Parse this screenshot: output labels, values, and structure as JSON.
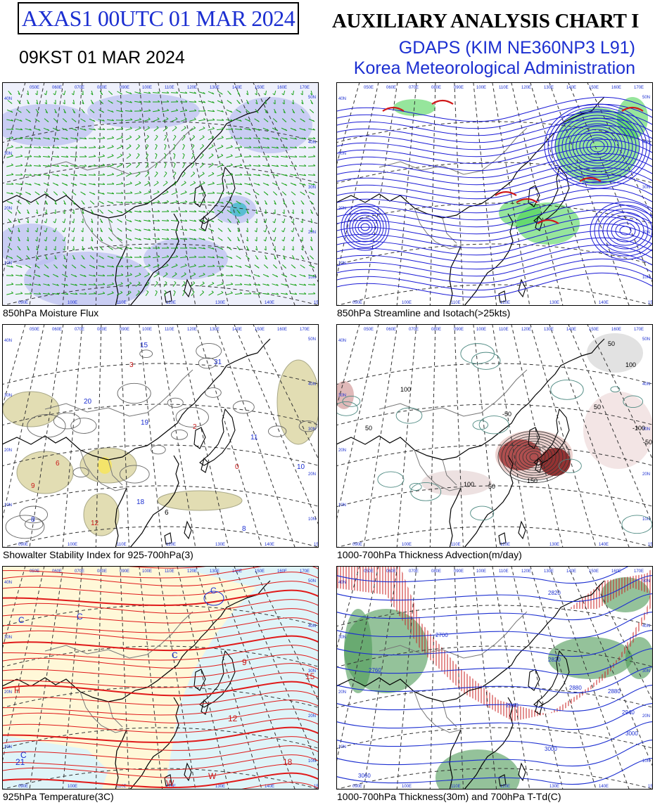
{
  "header": {
    "id": "AXAS1  00UTC 01 MAR 2024",
    "kst": "09KST 01 MAR 2024",
    "title": "AUXILIARY ANALYSIS CHART  I",
    "model": "GDAPS (KIM NE360NP3 L91)",
    "agency": "Korea Meteorological Administration"
  },
  "panels": [
    {
      "caption": "850hPa Moisture Flux",
      "top_lon": [
        "050E",
        "060E",
        "070E",
        "080E",
        "090E",
        "100E",
        "110E",
        "120E",
        "130E",
        "140E",
        "150E",
        "160E",
        "170E"
      ],
      "bottom_lon": [
        "090E",
        "100E",
        "110E",
        "120E",
        "130E",
        "140E",
        "150E"
      ],
      "left_lat": [
        "40N",
        "30N",
        "20N",
        "10N"
      ],
      "right_lat": [
        "50N",
        "40N",
        "30N",
        "20N",
        "10N"
      ],
      "labels": []
    },
    {
      "caption": "850hPa Streamline and Isotach(>25kts)",
      "top_lon": [
        "050E",
        "060E",
        "070E",
        "080E",
        "090E",
        "100E",
        "110E",
        "120E",
        "130E",
        "140E",
        "150E",
        "160E",
        "170E"
      ],
      "bottom_lon": [
        "090E",
        "100E",
        "110E",
        "120E",
        "130E",
        "140E",
        "150E"
      ],
      "left_lat": [
        "40N",
        "30N",
        "20N",
        "10N"
      ],
      "right_lat": [
        "50N",
        "40N",
        "30N",
        "20N",
        "10N"
      ],
      "labels": []
    },
    {
      "caption": "Showalter Stability Index for 925-700hPa(3)",
      "top_lon": [
        "050E",
        "060E",
        "070E",
        "080E",
        "090E",
        "100E",
        "110E",
        "120E",
        "130E",
        "140E",
        "150E",
        "160E",
        "170E"
      ],
      "bottom_lon": [
        "090E",
        "100E",
        "110E",
        "120E",
        "130E",
        "140E",
        "150E"
      ],
      "left_lat": [
        "40N",
        "30N",
        "20N",
        "10N"
      ],
      "right_lat": [
        "50N",
        "40N",
        "30N",
        "20N",
        "10N"
      ],
      "labels": [
        "15",
        "31",
        "20",
        "19",
        "18",
        "11",
        "10",
        "8",
        "2",
        "0",
        "9",
        "6",
        "3",
        "12",
        "8",
        "6"
      ]
    },
    {
      "caption": "1000-700hPa Thickness Advection(m/day)",
      "top_lon": [
        "050E",
        "060E",
        "070E",
        "080E",
        "090E",
        "100E",
        "110E",
        "120E",
        "130E",
        "140E",
        "150E",
        "160E",
        "170E"
      ],
      "bottom_lon": [
        "090E",
        "100E",
        "110E",
        "120E",
        "130E",
        "140E",
        "150E"
      ],
      "left_lat": [
        "40N",
        "30N",
        "20N",
        "10N"
      ],
      "right_lat": [
        "50N",
        "40N",
        "30N",
        "20N",
        "10N"
      ],
      "labels": [
        "50",
        "100",
        "150",
        "-50",
        "50",
        "100",
        "-100",
        "-50",
        "50",
        "100",
        "50"
      ]
    },
    {
      "caption": "925hPa Temperature(3C)",
      "top_lon": [
        "050E",
        "060E",
        "070E",
        "080E",
        "090E",
        "100E",
        "110E",
        "120E",
        "130E",
        "140E",
        "150E",
        "160E",
        "170E"
      ],
      "bottom_lon": [
        "090E",
        "100E",
        "110E",
        "120E",
        "130E",
        "140E",
        "150E"
      ],
      "left_lat": [
        "40N",
        "30N",
        "20N",
        "10N"
      ],
      "right_lat": [
        "50N",
        "40N",
        "30N",
        "20N",
        "10N"
      ],
      "labels": [
        "C",
        "C",
        "C",
        "C",
        "C",
        "H",
        "W",
        "W",
        "12",
        "9",
        "15",
        "18",
        "21"
      ]
    },
    {
      "caption": "1000-700hPa Thickness(30m) and 700hPa T-Td(C)",
      "top_lon": [
        "050E",
        "060E",
        "070E",
        "080E",
        "090E",
        "100E",
        "110E",
        "120E",
        "130E",
        "140E",
        "150E",
        "160E",
        "170E"
      ],
      "bottom_lon": [
        "090E",
        "100E",
        "110E",
        "120E",
        "130E",
        "140E",
        "150E"
      ],
      "left_lat": [
        "40N",
        "30N",
        "20N",
        "10N"
      ],
      "right_lat": [
        "50N",
        "40N",
        "30N",
        "20N",
        "10N"
      ],
      "labels": [
        "2700",
        "2820",
        "2760",
        "2940",
        "2880",
        "3000",
        "3060",
        "2880",
        "2940",
        "2820",
        "3000"
      ]
    }
  ],
  "colors": {
    "title_blue": "#1c2fd1",
    "moisture_green": "#1aa31a",
    "moisture_blue": "#b9bdf0",
    "stream_blue": "#1a1ad6",
    "isotach_green": "#3fd04a",
    "isotach_red": "#d01818",
    "ssi_fill": "#d9d29a",
    "advection_red": "#7a1010",
    "temp_red": "#e01a1a",
    "temp_yellow": "#fff8d8",
    "temp_cyan": "#dff4f8",
    "thick_green": "#4d9a56",
    "thick_hatch": "#c82020"
  }
}
